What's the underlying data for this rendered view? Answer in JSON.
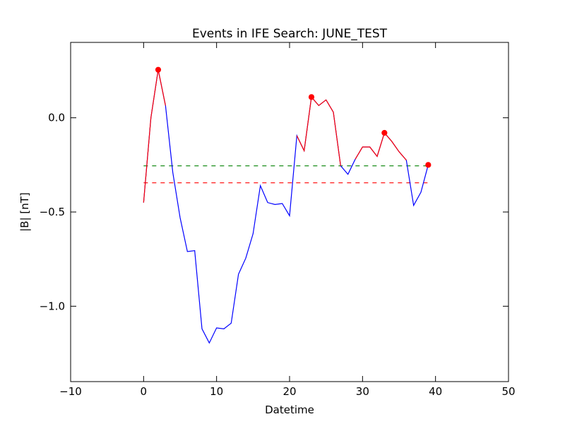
{
  "chart_data": {
    "type": "line",
    "title": "Events in IFE Search: JUNE_TEST",
    "xlabel": "Datetime",
    "ylabel": "|B| [nT]",
    "xlim": [
      -10,
      50
    ],
    "ylim": [
      -1.4,
      0.4
    ],
    "x_ticks": [
      -10,
      0,
      10,
      20,
      30,
      40,
      50
    ],
    "x_tick_labels": [
      "−10",
      "0",
      "10",
      "20",
      "30",
      "40",
      "50"
    ],
    "y_ticks": [
      -1.0,
      -0.5,
      0.0
    ],
    "y_tick_labels": [
      "−1.0",
      "−0.5",
      "0.0"
    ],
    "grid": false,
    "series": [
      {
        "color": "#0000ff",
        "x": [
          0,
          1,
          2,
          3,
          4,
          5,
          6,
          7,
          8,
          9,
          10,
          11,
          12,
          13,
          14,
          15,
          16,
          17,
          18,
          19,
          20,
          21,
          22,
          23,
          24,
          25,
          26,
          27,
          28,
          29,
          30,
          31,
          32,
          33,
          34,
          35,
          36,
          37,
          38,
          39
        ],
        "values": [
          -0.45,
          0.0,
          0.255,
          0.065,
          -0.29,
          -0.53,
          -0.71,
          -0.705,
          -1.12,
          -1.195,
          -1.115,
          -1.12,
          -1.09,
          -0.83,
          -0.745,
          -0.615,
          -0.36,
          -0.45,
          -0.46,
          -0.455,
          -0.52,
          -0.095,
          -0.175,
          0.11,
          0.065,
          0.095,
          0.03,
          -0.255,
          -0.3,
          -0.22,
          -0.155,
          -0.155,
          -0.205,
          -0.08,
          -0.125,
          -0.18,
          -0.225,
          -0.465,
          -0.395,
          -0.25
        ]
      },
      {
        "color": "#ff0000",
        "x": [
          0,
          1,
          2,
          3
        ],
        "values": [
          -0.45,
          0.0,
          0.255,
          0.065
        ]
      },
      {
        "color": "#ff0000",
        "x": [
          21,
          22,
          23,
          24,
          25,
          26,
          27
        ],
        "values": [
          -0.095,
          -0.175,
          0.11,
          0.065,
          0.095,
          0.03,
          -0.255
        ]
      },
      {
        "color": "#ff0000",
        "x": [
          29,
          30,
          31,
          32,
          33,
          34,
          35,
          36
        ],
        "values": [
          -0.22,
          -0.155,
          -0.155,
          -0.205,
          -0.08,
          -0.125,
          -0.18,
          -0.225
        ]
      }
    ],
    "markers": {
      "color": "#ff0000",
      "x": [
        2,
        23,
        33,
        39
      ],
      "values": [
        0.255,
        0.11,
        -0.08,
        -0.25
      ]
    },
    "hlines": [
      {
        "y": -0.255,
        "x_from": 0,
        "x_to": 39,
        "color": "#008000",
        "style": "dashed"
      },
      {
        "y": -0.345,
        "x_from": 0,
        "x_to": 39,
        "color": "#ff0000",
        "style": "dashed"
      }
    ]
  }
}
